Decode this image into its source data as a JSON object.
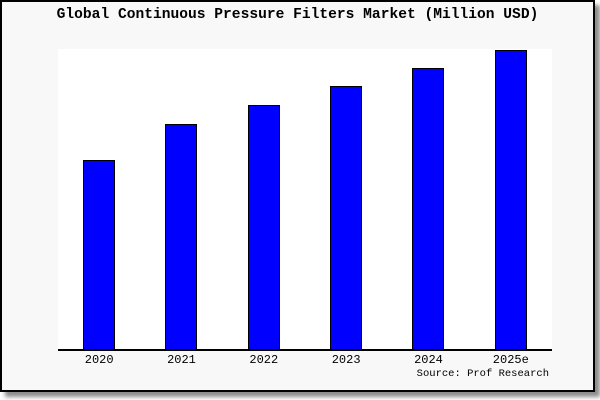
{
  "page": {
    "title": "Global Continuous Pressure Filters Market (Million USD)",
    "source_credit": "Source: Prof Research"
  },
  "colors": {
    "bar_fill": "#0000ff",
    "bar_border": "#000000",
    "frame_background": "#f8f8f8",
    "plot_background": "#ffffff",
    "axis_line": "#000000",
    "text": "#000000"
  },
  "chart_data": {
    "type": "bar",
    "title": "Global Continuous Pressure Filters Market (Million USD)",
    "categories": [
      "2020",
      "2021",
      "2022",
      "2023",
      "2024",
      "2025e"
    ],
    "values": [
      62.6,
      74.8,
      81.1,
      87.4,
      93.4,
      99.3
    ],
    "value_note": "No y-axis or data labels are shown in the image; values are relative bar heights measured as percent of plot height (tallest bar 2025e nearly touches plot top).",
    "xlabel": "",
    "ylabel": "",
    "ylim": [
      0,
      100
    ],
    "grid": false,
    "legend": false,
    "bar_color": "#0000ff",
    "bar_border_color": "#000000",
    "source": "Source: Prof Research"
  }
}
